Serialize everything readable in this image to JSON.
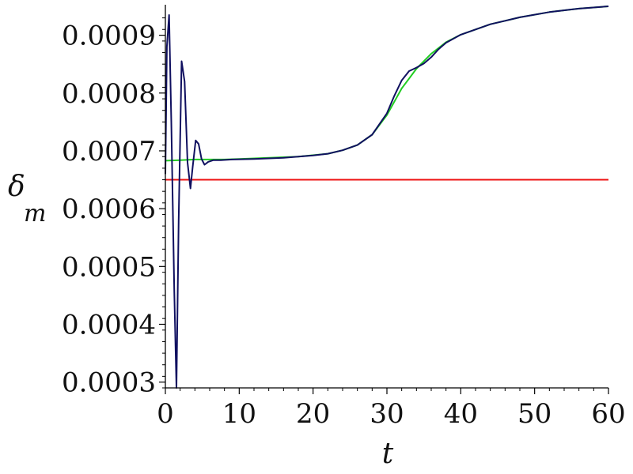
{
  "chart_data": {
    "type": "line",
    "xlabel": "t",
    "ylabel": "δ",
    "ylabel_subscript": "m",
    "xlim": [
      0,
      60
    ],
    "ylim": [
      0.00029,
      0.00095
    ],
    "x_ticks": [
      0,
      10,
      20,
      30,
      40,
      50,
      60
    ],
    "x_tick_labels": [
      "0",
      "10",
      "20",
      "30",
      "40",
      "50",
      "60"
    ],
    "y_ticks": [
      0.0003,
      0.0004,
      0.0005,
      0.0006,
      0.0007,
      0.0008,
      0.0009
    ],
    "y_tick_labels": [
      "0.0003",
      "0.0004",
      "0.0005",
      "0.0006",
      "0.0007",
      "0.0008",
      "0.0009"
    ],
    "grid": false,
    "series": [
      {
        "color": "#ee1111",
        "x": [
          0,
          60
        ],
        "y": [
          0.00065,
          0.00065
        ]
      },
      {
        "color": "#22cc22",
        "x": [
          0,
          2,
          4,
          6,
          8,
          10,
          14,
          18,
          22,
          24,
          26,
          28,
          30,
          32,
          34,
          36,
          38,
          40,
          44,
          48,
          52,
          56,
          60
        ],
        "y": [
          0.000683,
          0.000684,
          0.000685,
          0.000685,
          0.000685,
          0.000686,
          0.000688,
          0.00069,
          0.000695,
          0.000701,
          0.00071,
          0.000728,
          0.000762,
          0.000808,
          0.000842,
          0.000868,
          0.000888,
          0.000901,
          0.000919,
          0.000931,
          0.00094,
          0.000946,
          0.00095
        ]
      },
      {
        "color": "#101060",
        "x": [
          0,
          0.2,
          0.5,
          0.8,
          1.2,
          1.5,
          1.8,
          2.2,
          2.6,
          3.0,
          3.4,
          3.7,
          4.1,
          4.5,
          4.9,
          5.3,
          5.8,
          6.5,
          7.5,
          9,
          12,
          16,
          20,
          22,
          24,
          26,
          28,
          30,
          31,
          32,
          33,
          34,
          35,
          36,
          37,
          38,
          40,
          44,
          48,
          52,
          56,
          60
        ],
        "y": [
          0.00066,
          0.00088,
          0.000935,
          0.00075,
          0.00046,
          0.00029,
          0.00058,
          0.000855,
          0.00082,
          0.00068,
          0.000635,
          0.000672,
          0.000718,
          0.000712,
          0.000686,
          0.000676,
          0.000681,
          0.000684,
          0.000684,
          0.000685,
          0.000686,
          0.000688,
          0.000692,
          0.000695,
          0.000701,
          0.00071,
          0.000728,
          0.000765,
          0.000795,
          0.000822,
          0.000838,
          0.000844,
          0.000851,
          0.000862,
          0.000876,
          0.000887,
          0.000901,
          0.000919,
          0.000931,
          0.00094,
          0.000946,
          0.00095
        ]
      }
    ]
  }
}
